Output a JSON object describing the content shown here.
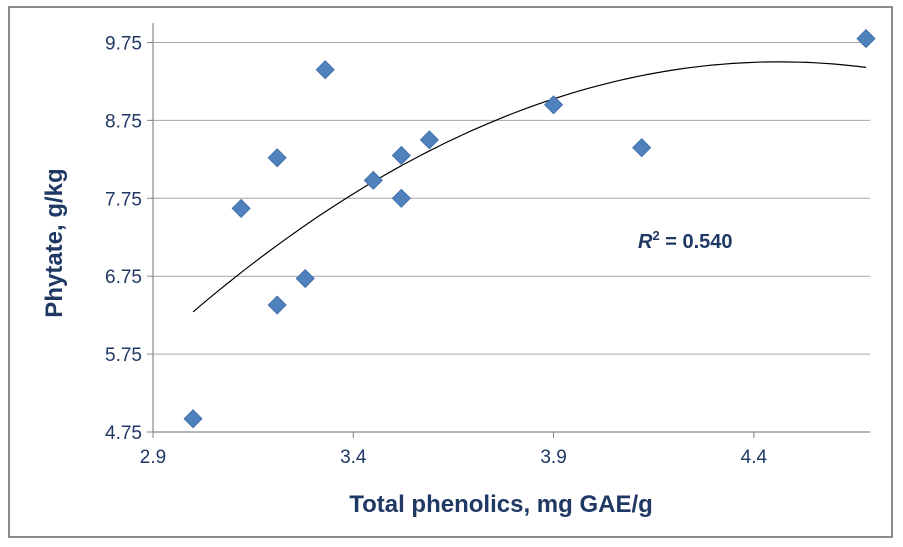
{
  "chart_data": {
    "type": "scatter",
    "title": "",
    "xlabel": "Total phenolics, mg GAE/g",
    "ylabel": "Phytate, g/kg",
    "xlim": [
      2.9,
      4.69
    ],
    "ylim": [
      4.75,
      10.0
    ],
    "x_ticks": [
      "2.9",
      "3.4",
      "3.9",
      "4.4"
    ],
    "y_ticks": [
      "4.75",
      "5.75",
      "6.75",
      "7.75",
      "8.75",
      "9.75"
    ],
    "x_tick_values": [
      2.9,
      3.4,
      3.9,
      4.4
    ],
    "y_tick_values": [
      4.75,
      5.75,
      6.75,
      7.75,
      8.75,
      9.75
    ],
    "grid": "horizontal",
    "marker_color": "#4f81bd",
    "trendline": {
      "type": "polynomial-2",
      "x_range": [
        3.0,
        4.68
      ],
      "points": [
        [
          3.0,
          6.3
        ],
        [
          3.4,
          7.8
        ],
        [
          3.9,
          9.0
        ],
        [
          4.4,
          9.55
        ],
        [
          4.68,
          9.4
        ]
      ],
      "color": "#000000"
    },
    "annotation": {
      "r_label": "R",
      "r_sup": "2",
      "r_value": " = 0.540"
    },
    "points": [
      {
        "x": 3.0,
        "y": 4.92
      },
      {
        "x": 3.12,
        "y": 7.62
      },
      {
        "x": 3.21,
        "y": 8.27
      },
      {
        "x": 3.21,
        "y": 6.38
      },
      {
        "x": 3.28,
        "y": 6.72
      },
      {
        "x": 3.33,
        "y": 9.4
      },
      {
        "x": 3.45,
        "y": 7.98
      },
      {
        "x": 3.52,
        "y": 8.3
      },
      {
        "x": 3.52,
        "y": 7.75
      },
      {
        "x": 3.59,
        "y": 8.5
      },
      {
        "x": 3.9,
        "y": 8.95
      },
      {
        "x": 4.12,
        "y": 8.4
      },
      {
        "x": 4.68,
        "y": 9.8
      }
    ]
  }
}
